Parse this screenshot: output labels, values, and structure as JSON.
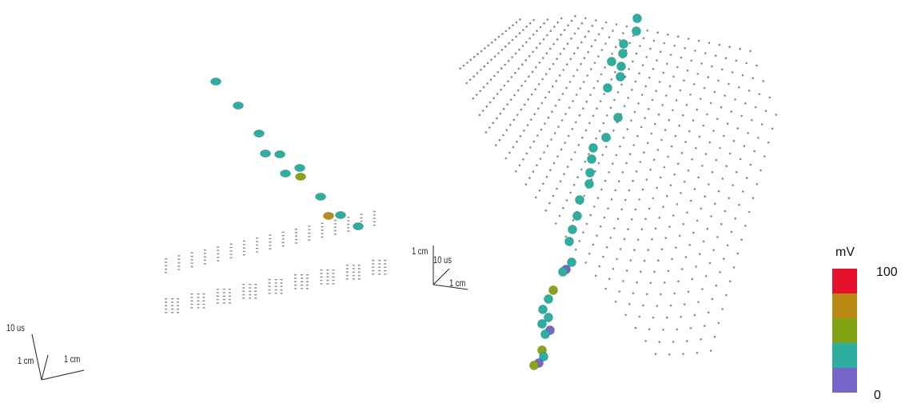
{
  "panels": [
    {
      "id": "left-view",
      "scale_labels": {
        "time": "10 us",
        "depth": "1 cm",
        "horizontal": "1 cm"
      }
    },
    {
      "id": "right-view",
      "scale_labels": {
        "depth": "1 cm",
        "time": "10 us",
        "horizontal": "1 cm"
      }
    }
  ],
  "colorbar": {
    "unit": "mV",
    "max_label": "100",
    "min_label": "0",
    "colors": [
      "#e8112d",
      "#b88a14",
      "#7fa313",
      "#2eada1",
      "#7566c9"
    ]
  },
  "hit_colors": {
    "teal": "#2eada1",
    "olive": "#8ba31a",
    "gold": "#b48f18",
    "purple": "#7566c9"
  },
  "grid_color": "#8a8a8a"
}
